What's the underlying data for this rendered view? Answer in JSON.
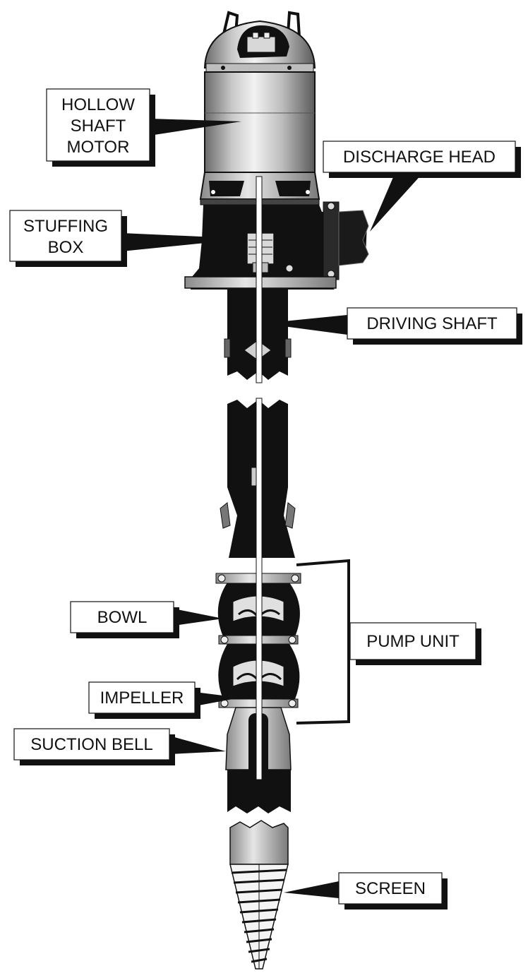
{
  "labels": {
    "motor": [
      "HOLLOW",
      "SHAFT",
      "MOTOR"
    ],
    "discharge_head": "DISCHARGE HEAD",
    "stuffing_box": [
      "STUFFING",
      "BOX"
    ],
    "driving_shaft": "DRIVING SHAFT",
    "bowl": "BOWL",
    "pump_unit": "PUMP UNIT",
    "impeller": "IMPELLER",
    "suction_bell": "SUCTION BELL",
    "screen": "SCREEN"
  }
}
